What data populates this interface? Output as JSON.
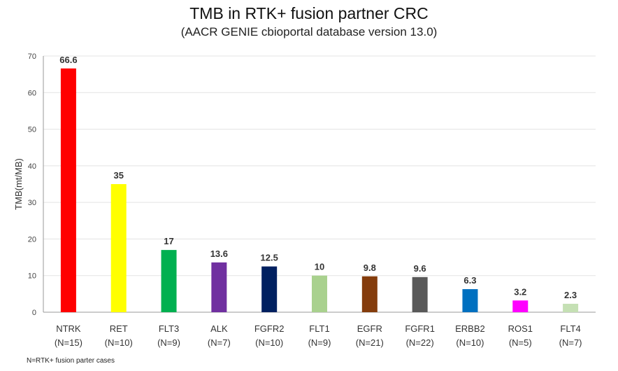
{
  "chart_data": {
    "type": "bar",
    "title": "TMB in RTK+ fusion partner CRC",
    "subtitle": "(AACR GENIE cbioportal database version 13.0)",
    "xlabel": "",
    "ylabel": "TMB(mt/MB)",
    "ylim": [
      0,
      70
    ],
    "yticks": [
      0,
      10,
      20,
      30,
      40,
      50,
      60,
      70
    ],
    "grid": true,
    "categories": [
      "NTRK",
      "RET",
      "FLT3",
      "ALK",
      "FGFR2",
      "FLT1",
      "EGFR",
      "FGFR1",
      "ERBB2",
      "ROS1",
      "FLT4"
    ],
    "category_sublabels": [
      "(N=15)",
      "(N=10)",
      "(N=9)",
      "(N=7)",
      "(N=10)",
      "(N=9)",
      "(N=21)",
      "(N=22)",
      "(N=10)",
      "(N=5)",
      "(N=7)"
    ],
    "values": [
      66.6,
      35,
      17,
      13.6,
      12.5,
      10,
      9.8,
      9.6,
      6.3,
      3.2,
      2.3
    ],
    "data_labels": [
      "66.6",
      "35",
      "17",
      "13.6",
      "12.5",
      "10",
      "9.8",
      "9.6",
      "6.3",
      "3.2",
      "2.3"
    ],
    "colors": [
      "#ff0000",
      "#ffff00",
      "#00b050",
      "#7030a0",
      "#002060",
      "#a9d18e",
      "#843c0c",
      "#595959",
      "#0070c0",
      "#ff00ff",
      "#c5e0b4"
    ],
    "footnote": "N=RTK+ fusion parter cases"
  }
}
